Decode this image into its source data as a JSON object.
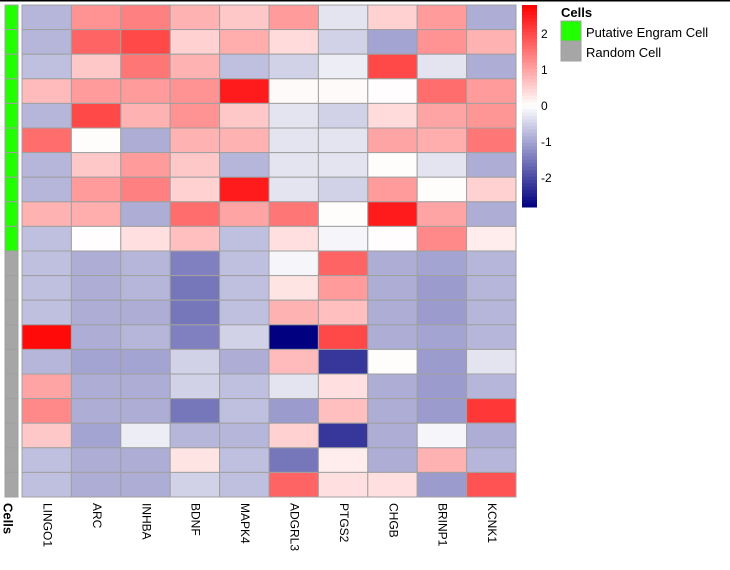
{
  "chart_data": {
    "type": "heatmap",
    "columns": [
      "LINGO1",
      "ARC",
      "INHBA",
      "BDNF",
      "MAPK4",
      "ADGRL3",
      "PTGS2",
      "CHGB",
      "BRINP1",
      "KCNK1"
    ],
    "row_annotation_label": "Cells",
    "row_groups": [
      "Putative Engram Cell",
      "Putative Engram Cell",
      "Putative Engram Cell",
      "Putative Engram Cell",
      "Putative Engram Cell",
      "Putative Engram Cell",
      "Putative Engram Cell",
      "Putative Engram Cell",
      "Putative Engram Cell",
      "Putative Engram Cell",
      "Random Cell",
      "Random Cell",
      "Random Cell",
      "Random Cell",
      "Random Cell",
      "Random Cell",
      "Random Cell",
      "Random Cell",
      "Random Cell",
      "Random Cell"
    ],
    "values": [
      [
        -0.8,
        1.2,
        1.4,
        0.85,
        0.6,
        1.1,
        -0.3,
        0.5,
        1.1,
        -0.9
      ],
      [
        -0.8,
        1.7,
        2.0,
        0.5,
        0.9,
        0.4,
        -0.5,
        -1.0,
        1.2,
        0.85
      ],
      [
        -0.7,
        0.6,
        1.5,
        0.85,
        -0.7,
        -0.5,
        -0.2,
        2.0,
        -0.3,
        -0.9
      ],
      [
        0.75,
        1.1,
        1.1,
        1.2,
        2.5,
        0.05,
        0.05,
        0.02,
        1.6,
        1.1
      ],
      [
        -0.8,
        2.0,
        0.85,
        1.2,
        0.6,
        -0.3,
        -0.5,
        0.4,
        1.0,
        1.15
      ],
      [
        1.6,
        0.03,
        -0.9,
        0.85,
        0.85,
        -0.3,
        -0.3,
        1.0,
        0.9,
        1.5
      ],
      [
        -0.8,
        0.6,
        1.1,
        0.6,
        -0.8,
        -0.3,
        -0.3,
        0.03,
        -0.3,
        -0.9
      ],
      [
        -0.8,
        1.1,
        1.4,
        0.5,
        2.5,
        -0.3,
        -0.5,
        1.1,
        0.03,
        0.5
      ],
      [
        0.85,
        0.9,
        -0.9,
        1.6,
        1.0,
        1.5,
        0.03,
        2.5,
        1.0,
        -0.9
      ],
      [
        -0.7,
        0.02,
        0.35,
        0.7,
        -0.7,
        0.35,
        -0.1,
        0.02,
        1.3,
        0.2
      ],
      [
        -0.7,
        -0.9,
        -0.8,
        -1.4,
        -0.7,
        -0.1,
        1.7,
        -0.9,
        -1.0,
        -0.8
      ],
      [
        -0.7,
        -0.9,
        -0.8,
        -1.5,
        -0.7,
        0.3,
        1.1,
        -0.9,
        -1.1,
        -0.8
      ],
      [
        -0.7,
        -0.9,
        -0.9,
        -1.5,
        -0.7,
        0.85,
        0.7,
        -0.9,
        -1.1,
        -0.8
      ],
      [
        2.7,
        -0.9,
        -0.8,
        -1.4,
        -0.5,
        -2.8,
        2.0,
        -0.9,
        -1.0,
        -0.8
      ],
      [
        -0.8,
        -1.0,
        -1.0,
        -0.5,
        -0.9,
        0.75,
        -2.2,
        0.03,
        -1.1,
        -0.3
      ],
      [
        1.0,
        -0.9,
        -0.9,
        -0.5,
        -0.7,
        -0.3,
        0.35,
        -0.9,
        -1.1,
        -0.8
      ],
      [
        1.3,
        -0.9,
        -0.9,
        -1.5,
        -0.7,
        -1.1,
        0.7,
        -0.9,
        -1.1,
        2.2
      ],
      [
        0.6,
        -1.0,
        -0.2,
        -0.8,
        -0.8,
        0.5,
        -2.2,
        -0.9,
        -0.1,
        -0.9
      ],
      [
        -0.7,
        -0.9,
        -0.9,
        0.3,
        -0.7,
        -1.5,
        0.2,
        -0.9,
        0.85,
        -0.8
      ],
      [
        -0.7,
        -0.9,
        -0.9,
        -0.5,
        -0.7,
        1.7,
        0.35,
        0.35,
        -1.1,
        1.9
      ]
    ],
    "color_scale": {
      "low": "#000080",
      "mid": "#FFFFFF",
      "high": "#FF0000",
      "range": [
        -2.8,
        2.8
      ],
      "ticks": [
        "2",
        "1",
        "0",
        "-1",
        "-2"
      ]
    },
    "legend": {
      "title": "Cells",
      "entries": [
        {
          "label": "Putative Engram Cell",
          "color": "#22FF00"
        },
        {
          "label": "Random Cell",
          "color": "#A6A6A6"
        }
      ],
      "placement": "right"
    }
  }
}
